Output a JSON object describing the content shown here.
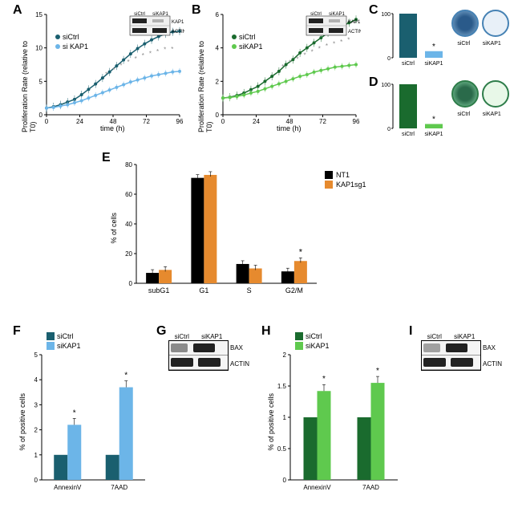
{
  "colors": {
    "dark_blue": "#1a5f6f",
    "light_blue": "#6cb5e8",
    "dark_green": "#1a6b2e",
    "light_green": "#5fc94e",
    "black": "#000000",
    "orange": "#e68a2e",
    "grid": "#cccccc",
    "bg": "#ffffff"
  },
  "panelA": {
    "label": "A",
    "type": "line",
    "xlabel": "time (h)",
    "ylabel": "Proliferation Rate (relative to T0)",
    "xlim": [
      0,
      96
    ],
    "xtick_step": 24,
    "ylim": [
      0,
      15
    ],
    "ytick_step": 5,
    "series": [
      {
        "name": "siCtrl",
        "color": "#1a5f6f",
        "values": [
          1,
          1.2,
          1.5,
          1.9,
          2.3,
          3.0,
          3.8,
          4.6,
          5.5,
          6.4,
          7.3,
          8.2,
          9.1,
          9.9,
          10.6,
          11.2,
          11.7,
          12.1,
          12.4,
          12.5
        ]
      },
      {
        "name": "si KAP1",
        "color": "#6cb5e8",
        "values": [
          1,
          1.1,
          1.3,
          1.5,
          1.8,
          2.1,
          2.5,
          2.9,
          3.3,
          3.7,
          4.1,
          4.5,
          4.9,
          5.2,
          5.5,
          5.8,
          6.0,
          6.2,
          6.4,
          6.5
        ]
      }
    ],
    "sig_stars": 10,
    "blot": {
      "labels": [
        "KAP1",
        "ACTIN"
      ],
      "cols": [
        "siCtrl",
        "siKAP1"
      ]
    }
  },
  "panelB": {
    "label": "B",
    "type": "line",
    "xlabel": "time (h)",
    "ylabel": "Proliferation Rate (relative to T0)",
    "xlim": [
      0,
      96
    ],
    "xtick_step": 24,
    "ylim": [
      0,
      6
    ],
    "ytick_step": 2,
    "series": [
      {
        "name": "siCtrl",
        "color": "#1a6b2e",
        "values": [
          1,
          1.05,
          1.15,
          1.3,
          1.5,
          1.7,
          2.0,
          2.3,
          2.6,
          3.0,
          3.3,
          3.7,
          4.0,
          4.3,
          4.6,
          4.9,
          5.1,
          5.3,
          5.5,
          5.7
        ]
      },
      {
        "name": "siKAP1",
        "color": "#5fc94e",
        "values": [
          1,
          1.03,
          1.1,
          1.18,
          1.3,
          1.4,
          1.55,
          1.7,
          1.85,
          2.0,
          2.15,
          2.3,
          2.4,
          2.55,
          2.65,
          2.75,
          2.85,
          2.9,
          2.95,
          3.0
        ]
      }
    ],
    "sig_stars": 10,
    "blot": {
      "labels": [
        "KAP1",
        "ACTIN"
      ],
      "cols": [
        "siCtrl",
        "siKAP1"
      ]
    }
  },
  "panelC": {
    "label": "C",
    "type": "bar",
    "ylabel": "% of colonies",
    "ylim": [
      0,
      100
    ],
    "yticks": [
      0,
      100
    ],
    "bars": [
      {
        "label": "siCtrl",
        "value": 100,
        "color": "#1a5f6f"
      },
      {
        "label": "siKAP1",
        "value": 15,
        "color": "#6cb5e8",
        "star": true
      }
    ],
    "plates": [
      "siCtrl",
      "siKAP1"
    ]
  },
  "panelD": {
    "label": "D",
    "type": "bar",
    "ylabel": "% of colonies",
    "ylim": [
      0,
      100
    ],
    "yticks": [
      0,
      100
    ],
    "bars": [
      {
        "label": "siCtrl",
        "value": 100,
        "color": "#1a6b2e"
      },
      {
        "label": "siKAP1",
        "value": 10,
        "color": "#5fc94e",
        "star": true
      }
    ],
    "plates": [
      "siCtrl",
      "siKAP1"
    ]
  },
  "panelE": {
    "label": "E",
    "type": "grouped-bar",
    "ylabel": "% of cells",
    "ylim": [
      0,
      80
    ],
    "ytick_step": 20,
    "categories": [
      "subG1",
      "G1",
      "S",
      "G2/M"
    ],
    "groups": [
      {
        "name": "NT1",
        "color": "#000000",
        "values": [
          7,
          71,
          13,
          8
        ]
      },
      {
        "name": "KAP1sg1",
        "color": "#e68a2e",
        "values": [
          9,
          73,
          10,
          15
        ]
      }
    ],
    "star_category": "G2/M"
  },
  "panelF": {
    "label": "F",
    "type": "grouped-bar",
    "ylabel": "% of positive cells",
    "ylim": [
      0,
      5
    ],
    "ytick_step": 1,
    "categories": [
      "AnnexinV",
      "7AAD"
    ],
    "groups": [
      {
        "name": "siCtrl",
        "color": "#1a5f6f",
        "values": [
          1.0,
          1.0
        ]
      },
      {
        "name": "siKAP1",
        "color": "#6cb5e8",
        "values": [
          2.2,
          3.7
        ],
        "stars": [
          true,
          true
        ]
      }
    ]
  },
  "panelG": {
    "label": "G",
    "blot": {
      "labels": [
        "BAX",
        "ACTIN"
      ],
      "cols": [
        "siCtrl",
        "siKAP1"
      ]
    }
  },
  "panelH": {
    "label": "H",
    "type": "grouped-bar",
    "ylabel": "% of positive cells",
    "ylim": [
      0,
      2.0
    ],
    "ytick_step": 0.5,
    "categories": [
      "AnnexinV",
      "7AAD"
    ],
    "groups": [
      {
        "name": "siCtrl",
        "color": "#1a6b2e",
        "values": [
          1.0,
          1.0
        ]
      },
      {
        "name": "siKAP1",
        "color": "#5fc94e",
        "values": [
          1.42,
          1.55
        ],
        "stars": [
          true,
          true
        ]
      }
    ]
  },
  "panelI": {
    "label": "I",
    "blot": {
      "labels": [
        "BAX",
        "ACTIN"
      ],
      "cols": [
        "siCtrl",
        "siKAP1"
      ]
    }
  }
}
